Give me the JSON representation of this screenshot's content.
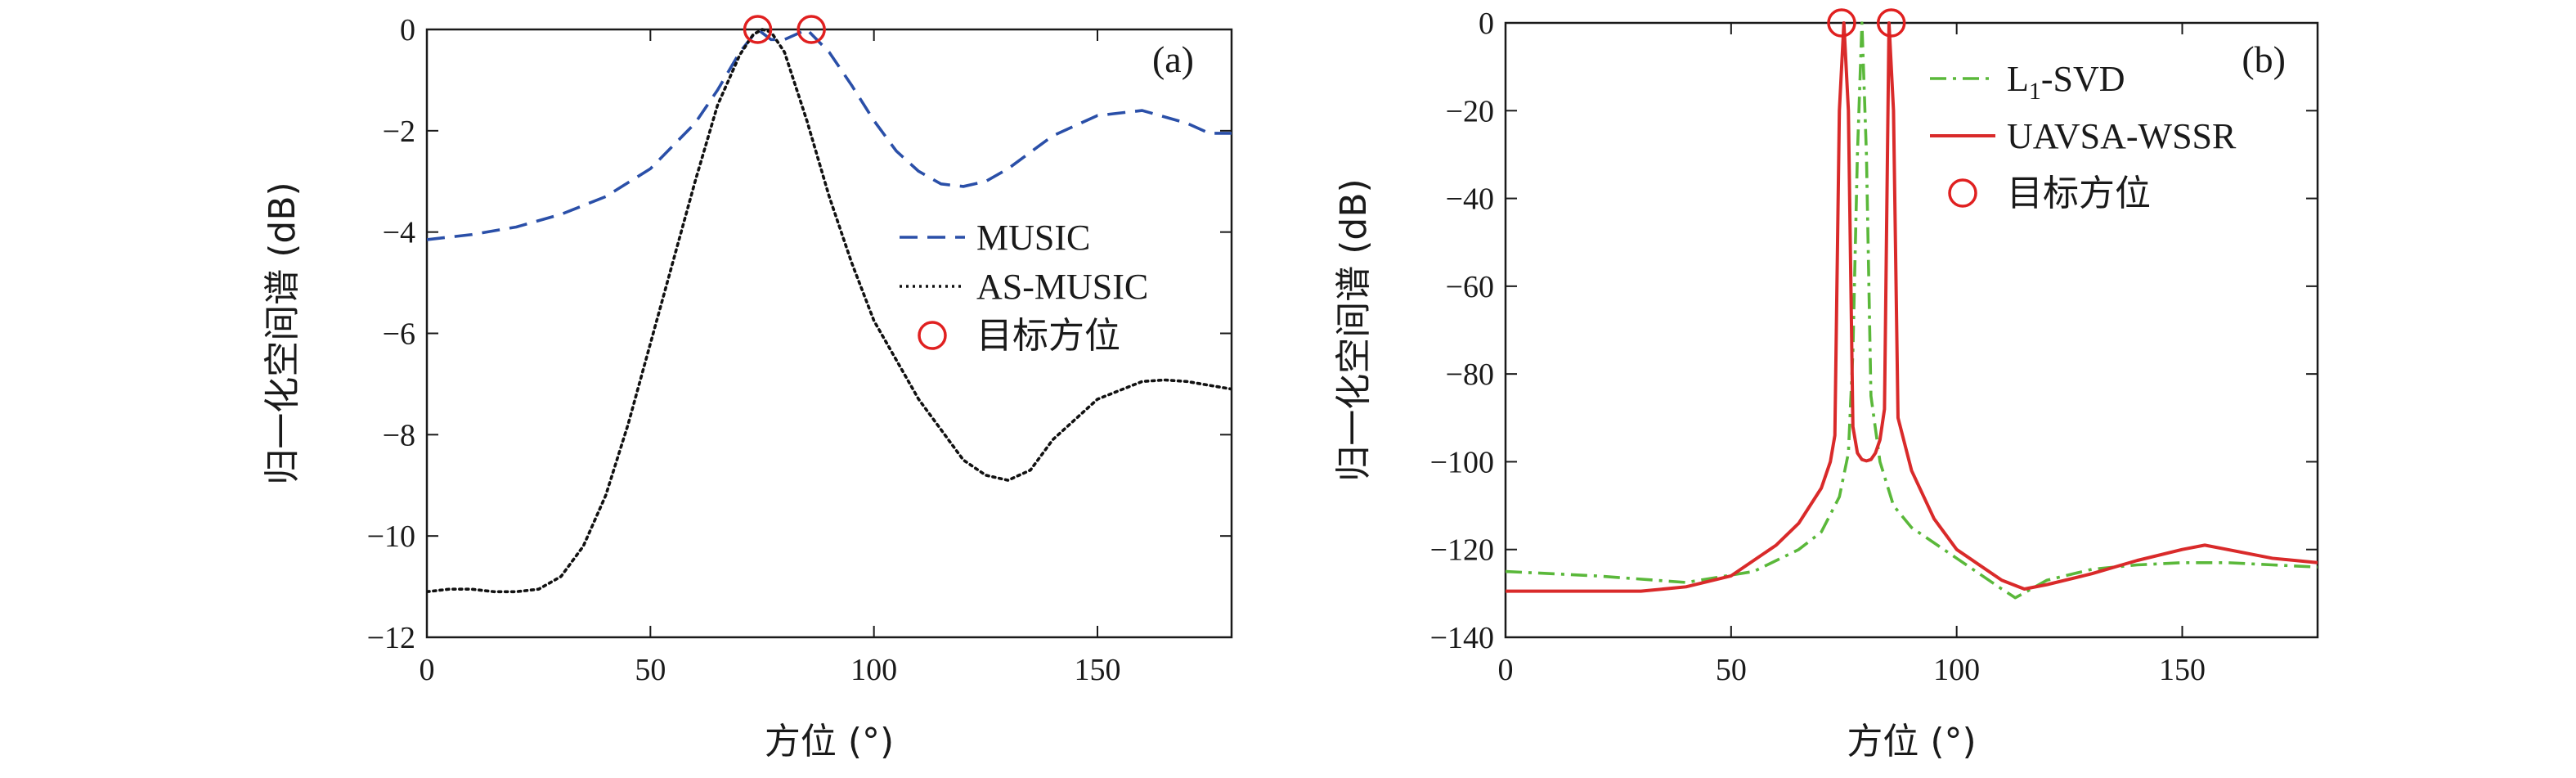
{
  "chart_data": [
    {
      "type": "line",
      "panel_label": "(a)",
      "xlabel": "方位 (°)",
      "ylabel": "归一化空间谱 (dB)",
      "xlim": [
        0,
        180
      ],
      "ylim": [
        -12,
        0
      ],
      "xticks": [
        0,
        50,
        100,
        150
      ],
      "yticks": [
        0,
        -2,
        -4,
        -6,
        -8,
        -10,
        -12
      ],
      "grid": false,
      "legend_position": "right-middle",
      "series": [
        {
          "name": "MUSIC",
          "color": "#2a4fa8",
          "style": "dashed",
          "x": [
            0,
            10,
            20,
            30,
            40,
            50,
            60,
            65,
            70,
            74,
            77,
            80,
            85,
            90,
            95,
            100,
            105,
            110,
            115,
            120,
            125,
            130,
            140,
            150,
            160,
            170,
            175,
            180
          ],
          "y": [
            -4.15,
            -4.05,
            -3.9,
            -3.65,
            -3.3,
            -2.75,
            -1.85,
            -1.2,
            -0.45,
            0.0,
            -0.2,
            -0.2,
            0.0,
            -0.45,
            -1.1,
            -1.8,
            -2.4,
            -2.8,
            -3.05,
            -3.1,
            -3.0,
            -2.75,
            -2.1,
            -1.7,
            -1.6,
            -1.85,
            -2.05,
            -2.05
          ]
        },
        {
          "name": "AS-MUSIC",
          "color": "#111111",
          "style": "dotted",
          "x": [
            0,
            5,
            10,
            15,
            20,
            25,
            30,
            35,
            40,
            45,
            50,
            55,
            60,
            65,
            70,
            73,
            75,
            77,
            80,
            85,
            90,
            95,
            100,
            110,
            120,
            125,
            130,
            135,
            140,
            150,
            160,
            165,
            170,
            180
          ],
          "y": [
            -11.1,
            -11.05,
            -11.05,
            -11.1,
            -11.1,
            -11.05,
            -10.8,
            -10.2,
            -9.2,
            -7.8,
            -6.2,
            -4.6,
            -3.0,
            -1.5,
            -0.5,
            -0.1,
            0.0,
            -0.05,
            -0.45,
            -1.8,
            -3.3,
            -4.6,
            -5.75,
            -7.3,
            -8.5,
            -8.8,
            -8.9,
            -8.7,
            -8.1,
            -7.3,
            -6.95,
            -6.92,
            -6.95,
            -7.1
          ]
        },
        {
          "name": "目标方位",
          "color": "#e02020",
          "style": "marker-circle",
          "x": [
            74,
            86
          ],
          "y": [
            0,
            0
          ]
        }
      ]
    },
    {
      "type": "line",
      "panel_label": "(b)",
      "xlabel": "方位 (°)",
      "ylabel": "归一化空间谱 (dB)",
      "xlim": [
        0,
        180
      ],
      "ylim": [
        -140,
        0
      ],
      "xticks": [
        0,
        50,
        100,
        150
      ],
      "yticks": [
        0,
        -20,
        -40,
        -60,
        -80,
        -100,
        -120,
        -140
      ],
      "grid": false,
      "legend_position": "top-right",
      "series": [
        {
          "name": "L1-SVD",
          "legend_main": "L",
          "legend_sub": "1",
          "legend_rest": "-SVD",
          "color": "#5ab83a",
          "style": "dashdot",
          "x": [
            0,
            20,
            40,
            55,
            65,
            70,
            74,
            76,
            77,
            78,
            79,
            80,
            81,
            83,
            86,
            90,
            100,
            110,
            113,
            120,
            130,
            140,
            150,
            160,
            170,
            180
          ],
          "y": [
            -125,
            -126,
            -127.5,
            -125,
            -120,
            -116,
            -108,
            -98,
            -75,
            -30,
            0,
            -30,
            -85,
            -100,
            -110,
            -115,
            -122,
            -129,
            -131,
            -127,
            -124.5,
            -123.5,
            -123,
            -123,
            -123.5,
            -124
          ]
        },
        {
          "name": "UAVSA-WSSR",
          "color": "#d92a2a",
          "style": "solid",
          "x": [
            0,
            10,
            20,
            30,
            40,
            50,
            60,
            65,
            70,
            72,
            73,
            74,
            75,
            76,
            77,
            78,
            79,
            80,
            81,
            82,
            83,
            84,
            85,
            86,
            87,
            90,
            95,
            100,
            110,
            115,
            120,
            130,
            140,
            150,
            155,
            160,
            170,
            180
          ],
          "y": [
            -129.5,
            -129.5,
            -129.5,
            -129.5,
            -128.5,
            -126,
            -119,
            -114,
            -106,
            -100,
            -94,
            -20,
            0,
            -20,
            -92,
            -98,
            -99.5,
            -99.8,
            -99.5,
            -98,
            -95,
            -88,
            0,
            -20,
            -90,
            -102,
            -113,
            -120,
            -127,
            -129,
            -128,
            -125.5,
            -122.5,
            -120,
            -119,
            -120,
            -122,
            -123
          ]
        },
        {
          "name": "目标方位",
          "color": "#e02020",
          "style": "marker-circle",
          "x": [
            74.5,
            85.5
          ],
          "y": [
            0,
            0
          ]
        }
      ]
    }
  ]
}
